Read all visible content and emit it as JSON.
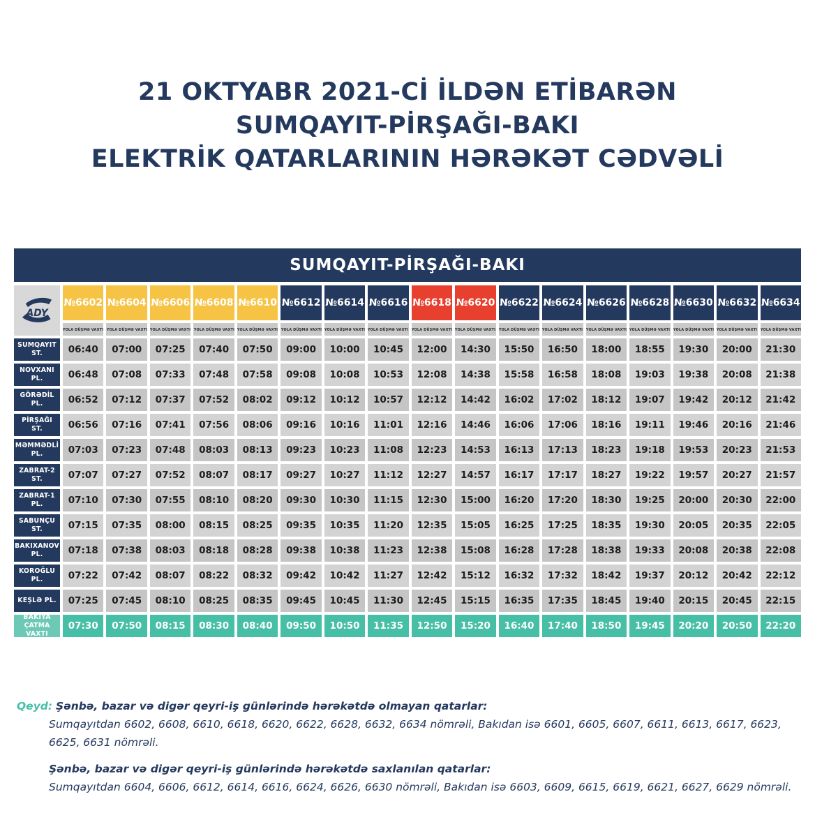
{
  "colors": {
    "navy": "#24395e",
    "yellow": "#f6c344",
    "red": "#e8402f",
    "teal": "#47bfa7",
    "tealLight": "#6bc9b5"
  },
  "title": {
    "line1": "21 OKTYABR 2021-Cİ İLDƏN ETİBARƏN",
    "line2": "SUMQAYIT-PİRŞAĞI-BAKI",
    "line3": "ELEKTRİK QATARLARININ HƏRƏKƏT CƏDVƏLİ"
  },
  "table": {
    "header": "SUMQAYIT-PİRŞAĞI-BAKI",
    "logo": "ADY",
    "sub_header": "YOLA DÜŞMƏ VAXTI",
    "trains": [
      {
        "number": "№6602",
        "color_key": "yellow"
      },
      {
        "number": "№6604",
        "color_key": "yellow"
      },
      {
        "number": "№6606",
        "color_key": "yellow"
      },
      {
        "number": "№6608",
        "color_key": "yellow"
      },
      {
        "number": "№6610",
        "color_key": "yellow"
      },
      {
        "number": "№6612",
        "color_key": "navy"
      },
      {
        "number": "№6614",
        "color_key": "navy"
      },
      {
        "number": "№6616",
        "color_key": "navy"
      },
      {
        "number": "№6618",
        "color_key": "red"
      },
      {
        "number": "№6620",
        "color_key": "red"
      },
      {
        "number": "№6622",
        "color_key": "navy"
      },
      {
        "number": "№6624",
        "color_key": "navy"
      },
      {
        "number": "№6626",
        "color_key": "navy"
      },
      {
        "number": "№6628",
        "color_key": "navy"
      },
      {
        "number": "№6630",
        "color_key": "navy"
      },
      {
        "number": "№6632",
        "color_key": "navy"
      },
      {
        "number": "№6634",
        "color_key": "navy"
      }
    ],
    "rows": [
      {
        "station": "SUMQAYIT ST.",
        "arrival": false,
        "times": [
          "06:40",
          "07:00",
          "07:25",
          "07:40",
          "07:50",
          "09:00",
          "10:00",
          "10:45",
          "12:00",
          "14:30",
          "15:50",
          "16:50",
          "18:00",
          "18:55",
          "19:30",
          "20:00",
          "21:30"
        ]
      },
      {
        "station": "NOVXANI PL.",
        "arrival": false,
        "times": [
          "06:48",
          "07:08",
          "07:33",
          "07:48",
          "07:58",
          "09:08",
          "10:08",
          "10:53",
          "12:08",
          "14:38",
          "15:58",
          "16:58",
          "18:08",
          "19:03",
          "19:38",
          "20:08",
          "21:38"
        ]
      },
      {
        "station": "GÖRƏDİL PL.",
        "arrival": false,
        "times": [
          "06:52",
          "07:12",
          "07:37",
          "07:52",
          "08:02",
          "09:12",
          "10:12",
          "10:57",
          "12:12",
          "14:42",
          "16:02",
          "17:02",
          "18:12",
          "19:07",
          "19:42",
          "20:12",
          "21:42"
        ]
      },
      {
        "station": "PİRŞAĞI ST.",
        "arrival": false,
        "times": [
          "06:56",
          "07:16",
          "07:41",
          "07:56",
          "08:06",
          "09:16",
          "10:16",
          "11:01",
          "12:16",
          "14:46",
          "16:06",
          "17:06",
          "18:16",
          "19:11",
          "19:46",
          "20:16",
          "21:46"
        ]
      },
      {
        "station": "MƏMMƏDLİ PL.",
        "arrival": false,
        "times": [
          "07:03",
          "07:23",
          "07:48",
          "08:03",
          "08:13",
          "09:23",
          "10:23",
          "11:08",
          "12:23",
          "14:53",
          "16:13",
          "17:13",
          "18:23",
          "19:18",
          "19:53",
          "20:23",
          "21:53"
        ]
      },
      {
        "station": "ZABRAT-2 ST.",
        "arrival": false,
        "times": [
          "07:07",
          "07:27",
          "07:52",
          "08:07",
          "08:17",
          "09:27",
          "10:27",
          "11:12",
          "12:27",
          "14:57",
          "16:17",
          "17:17",
          "18:27",
          "19:22",
          "19:57",
          "20:27",
          "21:57"
        ]
      },
      {
        "station": "ZABRAT-1 PL.",
        "arrival": false,
        "times": [
          "07:10",
          "07:30",
          "07:55",
          "08:10",
          "08:20",
          "09:30",
          "10:30",
          "11:15",
          "12:30",
          "15:00",
          "16:20",
          "17:20",
          "18:30",
          "19:25",
          "20:00",
          "20:30",
          "22:00"
        ]
      },
      {
        "station": "SABUNÇU ST.",
        "arrival": false,
        "times": [
          "07:15",
          "07:35",
          "08:00",
          "08:15",
          "08:25",
          "09:35",
          "10:35",
          "11:20",
          "12:35",
          "15:05",
          "16:25",
          "17:25",
          "18:35",
          "19:30",
          "20:05",
          "20:35",
          "22:05"
        ]
      },
      {
        "station": "BAKIXANOV PL.",
        "arrival": false,
        "times": [
          "07:18",
          "07:38",
          "08:03",
          "08:18",
          "08:28",
          "09:38",
          "10:38",
          "11:23",
          "12:38",
          "15:08",
          "16:28",
          "17:28",
          "18:38",
          "19:33",
          "20:08",
          "20:38",
          "22:08"
        ]
      },
      {
        "station": "KOROĞLU PL.",
        "arrival": false,
        "times": [
          "07:22",
          "07:42",
          "08:07",
          "08:22",
          "08:32",
          "09:42",
          "10:42",
          "11:27",
          "12:42",
          "15:12",
          "16:32",
          "17:32",
          "18:42",
          "19:37",
          "20:12",
          "20:42",
          "22:12"
        ]
      },
      {
        "station": "KEŞLƏ PL.",
        "arrival": false,
        "times": [
          "07:25",
          "07:45",
          "08:10",
          "08:25",
          "08:35",
          "09:45",
          "10:45",
          "11:30",
          "12:45",
          "15:15",
          "16:35",
          "17:35",
          "18:45",
          "19:40",
          "20:15",
          "20:45",
          "22:15"
        ]
      },
      {
        "station": "BAKIYA ÇATMA VAXTI",
        "arrival": true,
        "times": [
          "07:30",
          "07:50",
          "08:15",
          "08:30",
          "08:40",
          "09:50",
          "10:50",
          "11:35",
          "12:50",
          "15:20",
          "16:40",
          "17:40",
          "18:50",
          "19:45",
          "20:20",
          "20:50",
          "22:20"
        ]
      }
    ]
  },
  "notes": {
    "label": "Qeyd:",
    "note1_heading": "Şənbə, bazar və digər qeyri-iş günlərində hərəkətdə olmayan qatarlar:",
    "note1_body": "Sumqayıtdan 6602, 6608, 6610, 6618, 6620, 6622, 6628, 6632, 6634 nömrəli, Bakıdan isə  6601, 6605, 6607, 6611, 6613, 6617, 6623, 6625, 6631 nömrəli.",
    "note2_heading": "Şənbə, bazar və digər qeyri-iş günlərində hərəkətdə saxlanılan qatarlar:",
    "note2_body": "Sumqayıtdan 6604, 6606, 6612, 6614, 6616, 6624, 6626, 6630 nömrəli, Bakıdan isə 6603, 6609, 6615, 6619, 6621, 6627, 6629 nömrəli."
  }
}
